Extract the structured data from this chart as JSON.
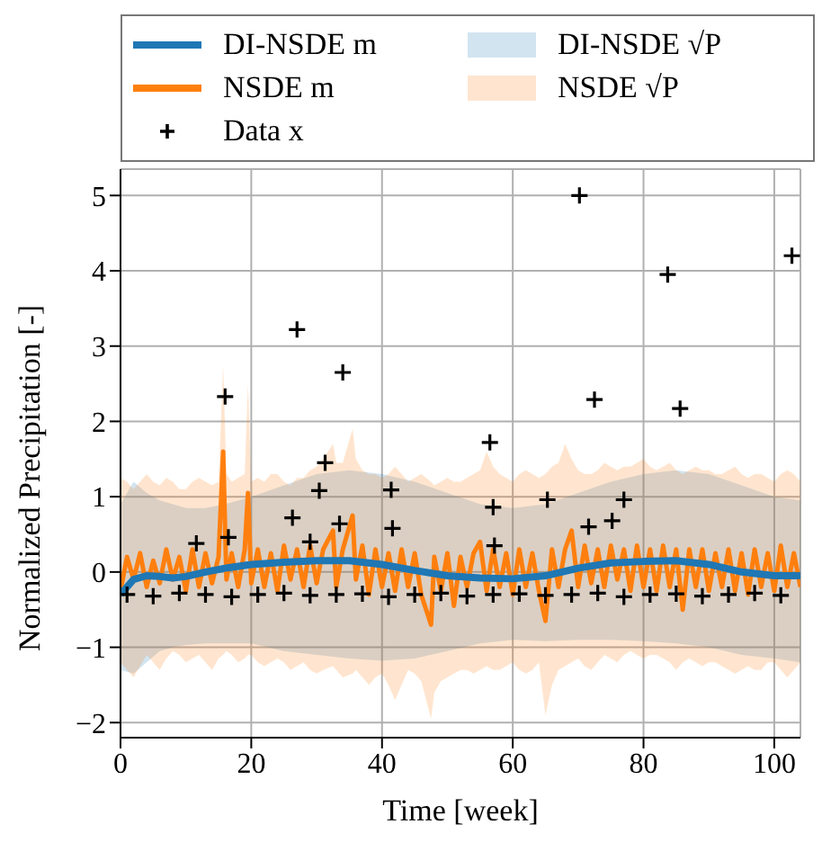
{
  "chart_data": {
    "type": "line",
    "xlabel": "Time [week]",
    "ylabel": "Normalized Precipitation [-]",
    "xlim": [
      0,
      104
    ],
    "xticks": [
      0,
      20,
      40,
      60,
      80,
      100
    ],
    "ylim": [
      -2.2,
      5.35
    ],
    "yticks": [
      -2,
      -1,
      0,
      1,
      2,
      3,
      4,
      5
    ],
    "grid": true,
    "legend": "top",
    "line_style": "solid",
    "annotations": [
      "DI-NSDE √P",
      "NSDE √P"
    ],
    "series": [
      {
        "name": "DI-NSDE m",
        "type": "line",
        "color": "#1f77b4",
        "x": [
          0,
          2,
          4,
          6,
          8,
          10,
          13,
          16,
          20,
          25,
          30,
          35,
          40,
          45,
          50,
          55,
          60,
          65,
          70,
          75,
          80,
          85,
          90,
          95,
          100,
          104
        ],
        "values": [
          -0.3,
          -0.1,
          -0.05,
          -0.06,
          -0.08,
          -0.06,
          0,
          0.05,
          0.1,
          0.13,
          0.15,
          0.15,
          0.1,
          0.02,
          -0.05,
          -0.08,
          -0.09,
          -0.05,
          0.05,
          0.12,
          0.14,
          0.15,
          0.1,
          0,
          -0.05,
          -0.05
        ],
        "upper": [
          0.9,
          1.2,
          1.05,
          0.95,
          0.9,
          0.85,
          0.85,
          0.9,
          1.0,
          1.15,
          1.3,
          1.35,
          1.3,
          1.2,
          1.05,
          0.9,
          0.85,
          0.9,
          1.05,
          1.2,
          1.3,
          1.35,
          1.3,
          1.15,
          1.0,
          0.95
        ],
        "lower": [
          -1.3,
          -1.35,
          -1.2,
          -1.05,
          -1.0,
          -0.97,
          -0.95,
          -0.95,
          -0.95,
          -1.05,
          -1.1,
          -1.15,
          -1.18,
          -1.15,
          -1.05,
          -0.95,
          -0.9,
          -0.92,
          -0.9,
          -0.9,
          -0.92,
          -0.95,
          -1.0,
          -1.1,
          -1.15,
          -1.2
        ]
      },
      {
        "name": "NSDE m",
        "type": "line",
        "color": "#ff7f0e",
        "x": [
          0,
          1,
          2,
          3,
          4,
          5,
          6,
          7,
          8,
          9,
          10,
          11,
          12,
          13,
          14,
          15,
          15.7,
          16.2,
          17,
          18,
          19,
          19.5,
          20,
          21,
          22,
          23,
          24,
          25,
          26,
          27,
          28,
          29,
          30,
          31,
          32.5,
          33,
          34,
          35.5,
          36,
          37,
          38,
          39,
          40,
          41,
          42,
          43,
          44,
          45,
          46,
          47.5,
          48,
          49,
          50,
          51,
          52,
          53,
          54,
          55,
          56,
          57,
          58,
          59,
          60,
          61,
          62,
          63,
          64,
          65,
          66,
          67,
          68,
          69,
          70,
          71,
          72,
          73,
          74,
          75,
          76,
          77,
          78,
          79,
          80,
          81,
          82,
          83,
          84,
          85,
          86,
          87,
          88,
          89,
          90,
          91,
          92,
          93,
          94,
          95,
          96,
          97,
          98,
          99,
          100,
          101,
          102,
          103,
          104
        ],
        "values": [
          -0.25,
          0.2,
          -0.1,
          0.25,
          -0.2,
          0.15,
          -0.15,
          0.3,
          -0.1,
          0.2,
          -0.25,
          0.3,
          -0.2,
          0.25,
          -0.15,
          0.2,
          1.6,
          -0.1,
          0.25,
          -0.2,
          0.3,
          1.05,
          -0.15,
          0.3,
          -0.2,
          0.25,
          -0.25,
          0.35,
          -0.1,
          0.3,
          -0.2,
          0.35,
          -0.15,
          0.3,
          0.55,
          -0.2,
          0.3,
          0.75,
          -0.1,
          0.35,
          -0.3,
          0.3,
          -0.2,
          0.25,
          -0.25,
          0.3,
          -0.2,
          0.25,
          -0.3,
          -0.7,
          0.2,
          -0.25,
          0.25,
          -0.45,
          0.2,
          -0.2,
          0.25,
          0.4,
          -0.25,
          0.3,
          -0.2,
          0.25,
          -0.3,
          0.3,
          -0.2,
          0.25,
          -0.25,
          -0.65,
          0.3,
          -0.2,
          0.3,
          0.55,
          -0.2,
          0.35,
          -0.15,
          0.3,
          -0.2,
          0.35,
          -0.1,
          0.3,
          -0.25,
          0.35,
          -0.2,
          0.3,
          -0.25,
          0.35,
          -0.2,
          0.3,
          -0.5,
          0.3,
          -0.2,
          0.3,
          -0.25,
          0.25,
          -0.2,
          0.3,
          -0.25,
          0.25,
          -0.3,
          0.3,
          -0.2,
          0.25,
          -0.25,
          0.35,
          -0.2,
          0.25,
          -0.2
        ],
        "upper": [
          1.25,
          1.2,
          1.1,
          1.2,
          1.3,
          1.2,
          1.15,
          1.25,
          1.2,
          1.1,
          1.1,
          1.2,
          1.25,
          1.2,
          1.15,
          1.2,
          2.75,
          1.3,
          1.2,
          1.25,
          1.3,
          2.5,
          1.2,
          1.25,
          1.2,
          1.3,
          1.3,
          1.2,
          1.15,
          1.25,
          1.25,
          1.35,
          1.4,
          1.5,
          1.7,
          1.45,
          1.45,
          1.9,
          1.5,
          1.35,
          1.3,
          1.3,
          1.25,
          1.3,
          1.4,
          1.3,
          1.2,
          1.25,
          1.3,
          1.2,
          1.15,
          1.2,
          1.25,
          1.2,
          1.2,
          1.25,
          1.3,
          1.35,
          1.6,
          1.4,
          1.3,
          1.25,
          1.2,
          1.3,
          1.35,
          1.3,
          1.25,
          1.3,
          1.4,
          1.45,
          1.7,
          1.5,
          1.35,
          1.3,
          1.3,
          1.35,
          1.45,
          1.4,
          1.35,
          1.4,
          1.4,
          1.45,
          1.5,
          1.4,
          1.35,
          1.4,
          1.45,
          1.35,
          1.3,
          1.35,
          1.4,
          1.35,
          1.35,
          1.3,
          1.3,
          1.35,
          1.4,
          1.3,
          1.25,
          1.3,
          1.3,
          1.25,
          1.2,
          1.3,
          1.35,
          1.3,
          1.2
        ],
        "lower": [
          -1.2,
          -1.3,
          -1.4,
          -1.25,
          -1.1,
          -1.2,
          -1.3,
          -1.15,
          -1.05,
          -1.1,
          -1.2,
          -1.15,
          -1.1,
          -1.2,
          -1.3,
          -1.15,
          -1.1,
          -1.05,
          -1.1,
          -1.2,
          -1.15,
          -1.1,
          -1.1,
          -1.2,
          -1.25,
          -1.2,
          -1.15,
          -1.2,
          -1.3,
          -1.25,
          -1.2,
          -1.3,
          -1.35,
          -1.3,
          -1.25,
          -1.3,
          -1.4,
          -1.35,
          -1.3,
          -1.4,
          -1.5,
          -1.4,
          -1.35,
          -1.5,
          -1.7,
          -1.5,
          -1.3,
          -1.35,
          -1.45,
          -1.95,
          -1.6,
          -1.45,
          -1.4,
          -1.35,
          -1.3,
          -1.3,
          -1.35,
          -1.3,
          -1.25,
          -1.3,
          -1.3,
          -1.25,
          -1.2,
          -1.3,
          -1.35,
          -1.3,
          -1.2,
          -1.9,
          -1.5,
          -1.3,
          -1.25,
          -1.2,
          -1.15,
          -1.25,
          -1.3,
          -1.2,
          -1.1,
          -1.15,
          -1.2,
          -1.1,
          -1.05,
          -1.1,
          -1.15,
          -1.1,
          -1.1,
          -1.15,
          -1.2,
          -1.3,
          -1.2,
          -1.15,
          -1.2,
          -1.25,
          -1.2,
          -1.2,
          -1.25,
          -1.3,
          -1.35,
          -1.3,
          -1.25,
          -1.3,
          -1.3,
          -1.2,
          -1.2,
          -1.3,
          -1.4,
          -1.3,
          -1.2
        ]
      },
      {
        "name": "Data x",
        "type": "scatter",
        "color": "#000000",
        "marker": "cross",
        "x": [
          1,
          5,
          9,
          11.6,
          13,
          16,
          16.5,
          17,
          21,
          25,
          26.3,
          27,
          29,
          29,
          30.4,
          31.3,
          33,
          33.5,
          34,
          37,
          41,
          41.4,
          41.6,
          45,
          49,
          53,
          56.5,
          57,
          57,
          57.2,
          61,
          65,
          65.3,
          69,
          70.2,
          71.6,
          72.5,
          73,
          75.2,
          77,
          77,
          81,
          83.7,
          85,
          85.6,
          89,
          93,
          97,
          101,
          102.7
        ],
        "values": [
          -0.3,
          -0.32,
          -0.28,
          0.38,
          -0.3,
          2.33,
          0.46,
          -0.33,
          -0.3,
          -0.28,
          0.72,
          3.22,
          0.4,
          -0.31,
          1.08,
          1.45,
          -0.3,
          0.64,
          2.65,
          -0.29,
          -0.33,
          1.09,
          0.58,
          -0.3,
          -0.28,
          -0.32,
          1.72,
          0.86,
          -0.3,
          0.35,
          -0.29,
          -0.31,
          0.96,
          -0.3,
          5.0,
          0.6,
          2.29,
          -0.28,
          0.68,
          0.96,
          -0.33,
          -0.3,
          3.95,
          -0.29,
          2.17,
          -0.32,
          -0.3,
          -0.28,
          -0.31,
          4.2
        ]
      }
    ]
  }
}
